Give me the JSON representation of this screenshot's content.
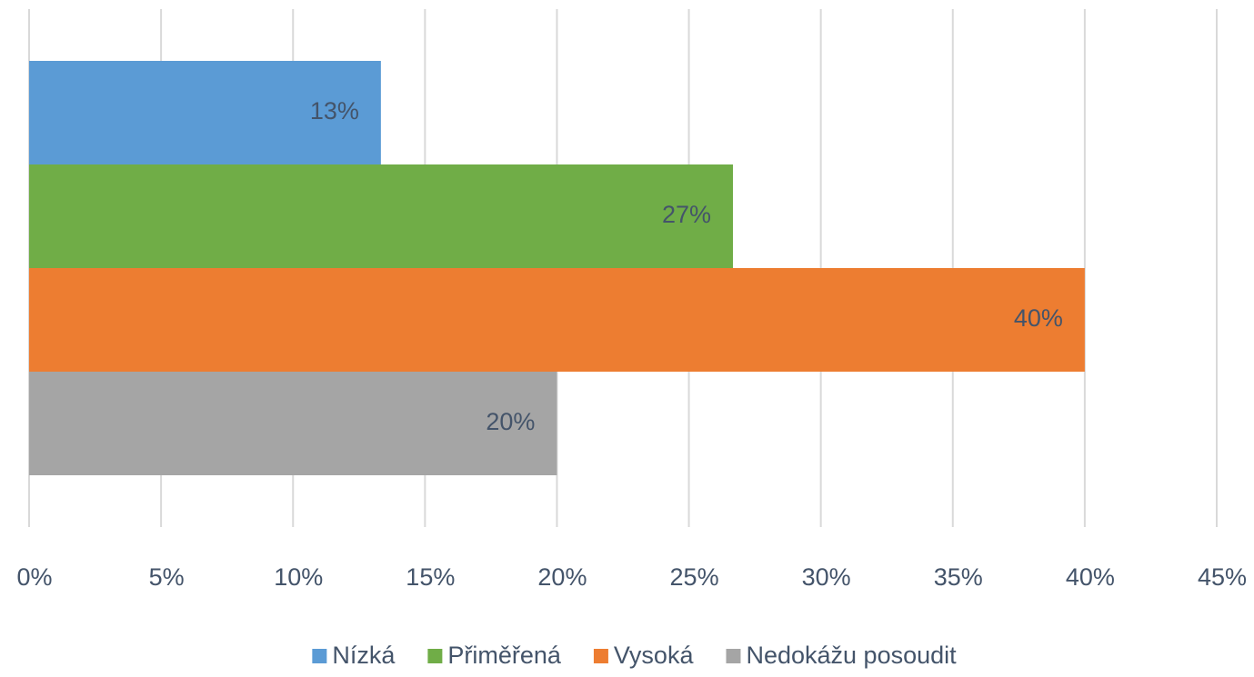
{
  "chart_data": {
    "type": "bar",
    "orientation": "horizontal",
    "categories": [
      null
    ],
    "series": [
      {
        "name": "Nízká",
        "color": "#5b9bd5",
        "values": [
          13.33
        ],
        "value_labels": [
          "13%"
        ]
      },
      {
        "name": "Přiměřená",
        "color": "#70ad47",
        "values": [
          26.67
        ],
        "value_labels": [
          "27%"
        ]
      },
      {
        "name": "Vysoká",
        "color": "#ed7d31",
        "values": [
          40
        ],
        "value_labels": [
          "40%"
        ]
      },
      {
        "name": "Nedokážu posoudit",
        "color": "#a5a5a5",
        "values": [
          20
        ],
        "value_labels": [
          "20%"
        ]
      }
    ],
    "xlim": [
      0,
      45
    ],
    "xticks": [
      {
        "value": 0,
        "label": "0%"
      },
      {
        "value": 5,
        "label": "5%"
      },
      {
        "value": 10,
        "label": "10%"
      },
      {
        "value": 15,
        "label": "15%"
      },
      {
        "value": 20,
        "label": "20%"
      },
      {
        "value": 25,
        "label": "25%"
      },
      {
        "value": 30,
        "label": "30%"
      },
      {
        "value": 35,
        "label": "35%"
      },
      {
        "value": 40,
        "label": "40%"
      },
      {
        "value": 45,
        "label": "45%"
      }
    ],
    "grid": true,
    "legend": "bottom"
  }
}
